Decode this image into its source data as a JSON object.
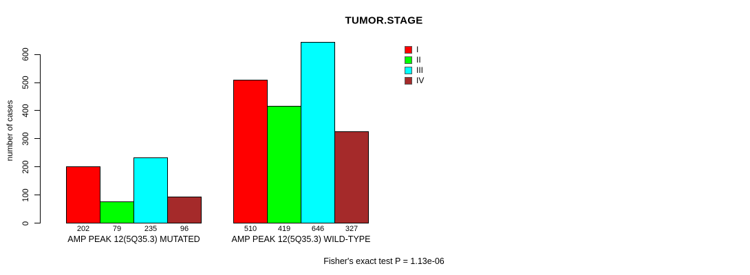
{
  "title": "TUMOR.STAGE",
  "ylabel": "number of cases",
  "footer": "Fisher's exact test P = 1.13e-06",
  "chart_data": {
    "type": "bar",
    "title": "TUMOR.STAGE",
    "xlabel": "",
    "ylabel": "number of cases",
    "ylim": [
      0,
      650
    ],
    "yticks": [
      0,
      100,
      200,
      300,
      400,
      500,
      600
    ],
    "grid": false,
    "legend_position": "top-right-of-plot",
    "categories": [
      "AMP PEAK 12(5Q35.3) MUTATED",
      "AMP PEAK 12(5Q35.3) WILD-TYPE"
    ],
    "series": [
      {
        "name": "I",
        "color": "#FF0000",
        "values": [
          202,
          510
        ]
      },
      {
        "name": "II",
        "color": "#00FF00",
        "values": [
          79,
          419
        ]
      },
      {
        "name": "III",
        "color": "#00FFFF",
        "values": [
          235,
          646
        ]
      },
      {
        "name": "IV",
        "color": "#A52A2A",
        "values": [
          96,
          327
        ]
      }
    ],
    "bar_value_labels": [
      [
        202,
        79,
        235,
        96
      ],
      [
        510,
        419,
        646,
        327
      ]
    ],
    "annotation": "Fisher's exact test P = 1.13e-06"
  }
}
